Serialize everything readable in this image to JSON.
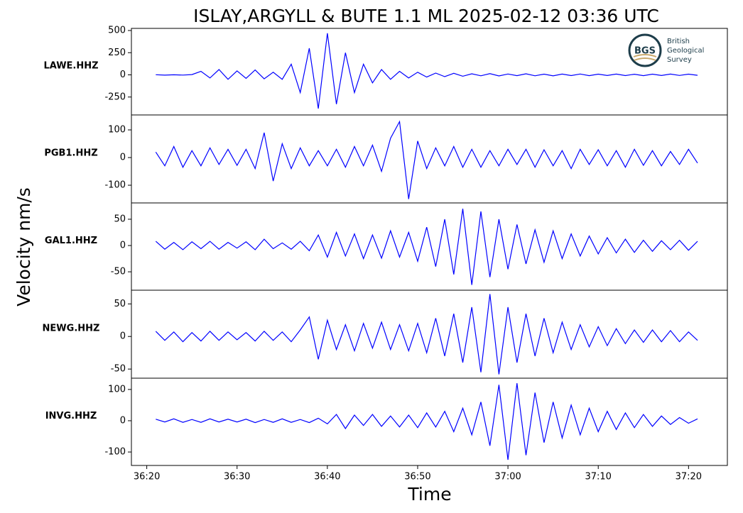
{
  "chart_data": {
    "type": "line",
    "title": "ISLAY,ARGYLL & BUTE 1.1 ML   2025-02-12 03:36 UTC",
    "xlabel": "Time",
    "ylabel": "Velocity nm/s",
    "xlim": [
      2178.3,
      2244.3
    ],
    "xticks": [
      {
        "value": 2180,
        "label": "36:20"
      },
      {
        "value": 2190,
        "label": "36:30"
      },
      {
        "value": 2200,
        "label": "36:40"
      },
      {
        "value": 2210,
        "label": "36:50"
      },
      {
        "value": 2220,
        "label": "37:00"
      },
      {
        "value": 2230,
        "label": "37:10"
      },
      {
        "value": 2240,
        "label": "37:20"
      }
    ],
    "x": [
      2181,
      2182,
      2183,
      2184,
      2185,
      2186,
      2187,
      2188,
      2189,
      2190,
      2191,
      2192,
      2193,
      2194,
      2195,
      2196,
      2197,
      2198,
      2199,
      2200,
      2201,
      2202,
      2203,
      2204,
      2205,
      2206,
      2207,
      2208,
      2209,
      2210,
      2211,
      2212,
      2213,
      2214,
      2215,
      2216,
      2217,
      2218,
      2219,
      2220,
      2221,
      2222,
      2223,
      2224,
      2225,
      2226,
      2227,
      2228,
      2229,
      2230,
      2231,
      2232,
      2233,
      2234,
      2235,
      2236,
      2237,
      2238,
      2239,
      2240,
      2241
    ],
    "series": [
      {
        "name": "LAWE.HHZ",
        "color": "#0000ff",
        "ylim": [
          -452,
          524
        ],
        "yticks": [
          -250,
          0,
          250,
          500
        ],
        "values": [
          2,
          -3,
          1,
          -2,
          3,
          40,
          -35,
          60,
          -50,
          45,
          -40,
          55,
          -45,
          30,
          -50,
          120,
          -200,
          300,
          -380,
          470,
          -330,
          250,
          -200,
          120,
          -90,
          60,
          -50,
          40,
          -35,
          30,
          -25,
          20,
          -20,
          18,
          -15,
          12,
          -10,
          14,
          -12,
          10,
          -9,
          12,
          -10,
          8,
          -11,
          9,
          -8,
          10,
          -9,
          8,
          -7,
          9,
          -8,
          7,
          -9,
          8,
          -7,
          9,
          -6,
          8,
          -5
        ]
      },
      {
        "name": "PGB1.HHZ",
        "color": "#0000ff",
        "ylim": [
          -164,
          154
        ],
        "yticks": [
          -100,
          0,
          100
        ],
        "values": [
          20,
          -30,
          40,
          -35,
          25,
          -30,
          35,
          -25,
          30,
          -28,
          30,
          -40,
          90,
          -85,
          50,
          -40,
          35,
          -30,
          25,
          -30,
          30,
          -35,
          40,
          -30,
          45,
          -50,
          70,
          130,
          -150,
          60,
          -40,
          35,
          -30,
          40,
          -35,
          30,
          -35,
          25,
          -30,
          30,
          -25,
          30,
          -35,
          28,
          -30,
          25,
          -40,
          30,
          -25,
          28,
          -30,
          25,
          -35,
          30,
          -28,
          25,
          -30,
          22,
          -25,
          30,
          -20
        ]
      },
      {
        "name": "GAL1.HHZ",
        "color": "#0000ff",
        "ylim": [
          -85,
          81
        ],
        "yticks": [
          -50,
          0,
          50
        ],
        "values": [
          8,
          -7,
          6,
          -8,
          7,
          -6,
          8,
          -7,
          6,
          -5,
          7,
          -8,
          12,
          -6,
          5,
          -7,
          8,
          -10,
          20,
          -22,
          25,
          -20,
          22,
          -25,
          20,
          -24,
          28,
          -22,
          25,
          -30,
          35,
          -40,
          50,
          -55,
          70,
          -75,
          65,
          -60,
          50,
          -45,
          40,
          -35,
          30,
          -32,
          28,
          -25,
          22,
          -20,
          18,
          -16,
          15,
          -14,
          12,
          -13,
          10,
          -11,
          9,
          -8,
          10,
          -9,
          8
        ]
      },
      {
        "name": "NEWG.HHZ",
        "color": "#0000ff",
        "ylim": [
          -64,
          71
        ],
        "yticks": [
          -50,
          0,
          50
        ],
        "values": [
          8,
          -6,
          7,
          -8,
          6,
          -7,
          8,
          -6,
          7,
          -5,
          6,
          -7,
          8,
          -6,
          7,
          -8,
          10,
          30,
          -35,
          25,
          -20,
          18,
          -22,
          20,
          -18,
          22,
          -20,
          18,
          -22,
          20,
          -25,
          28,
          -30,
          35,
          -40,
          45,
          -55,
          65,
          -58,
          45,
          -40,
          35,
          -30,
          28,
          -25,
          22,
          -20,
          18,
          -16,
          15,
          -14,
          12,
          -11,
          10,
          -9,
          10,
          -8,
          9,
          -8,
          7,
          -6
        ]
      },
      {
        "name": "INVG.HHZ",
        "color": "#0000ff",
        "ylim": [
          -143,
          136
        ],
        "yticks": [
          -100,
          0,
          100
        ],
        "values": [
          5,
          -4,
          6,
          -5,
          4,
          -5,
          6,
          -4,
          5,
          -4,
          5,
          -6,
          4,
          -5,
          6,
          -5,
          4,
          -6,
          8,
          -10,
          20,
          -25,
          18,
          -15,
          20,
          -18,
          15,
          -20,
          18,
          -22,
          25,
          -20,
          30,
          -35,
          40,
          -45,
          60,
          -80,
          115,
          -125,
          120,
          -110,
          90,
          -70,
          60,
          -55,
          50,
          -45,
          40,
          -35,
          30,
          -28,
          25,
          -22,
          20,
          -18,
          15,
          -12,
          10,
          -8,
          6
        ]
      }
    ]
  },
  "logo": {
    "abbr": "BGS",
    "name": [
      "British",
      "Geological",
      "Survey"
    ]
  }
}
